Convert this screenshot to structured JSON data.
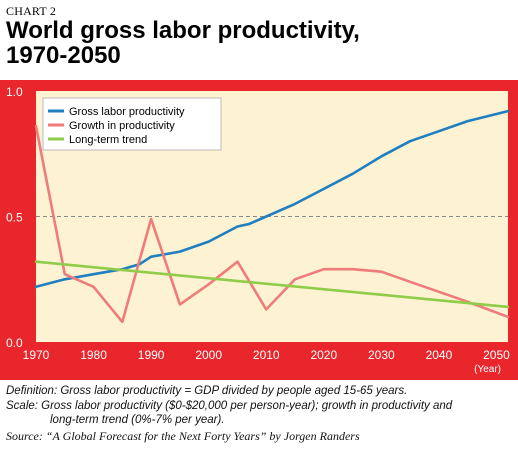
{
  "header": {
    "chart_label": "CHART 2",
    "title_line1": "World gross labor productivity,",
    "title_line2": "1970-2050"
  },
  "colors": {
    "frame": "#e8262c",
    "plot_bg": "#fdf2d2",
    "productivity": "#1f7fc0",
    "growth": "#ef7b7b",
    "trend": "#8fcc4a",
    "gridline": "#888888"
  },
  "chart_data": {
    "type": "line",
    "title": "World gross labor productivity, 1970-2050",
    "xlabel": "(Year)",
    "ylabel": "",
    "xlim": [
      1970,
      2052
    ],
    "ylim": [
      0,
      1
    ],
    "x_ticks": [
      1970,
      1980,
      1990,
      2000,
      2010,
      2020,
      2030,
      2040,
      2050
    ],
    "y_ticks": [
      {
        "value": 0,
        "label": "0.0"
      },
      {
        "value": 0.5,
        "label": "0.5"
      },
      {
        "value": 1,
        "label": "1.0"
      }
    ],
    "gridlines": [
      0.5
    ],
    "legend_position": "top-left",
    "series": [
      {
        "name": "Gross labor productivity",
        "color": "#1f7fc0",
        "points": [
          [
            1970,
            0.22
          ],
          [
            1975,
            0.25
          ],
          [
            1980,
            0.27
          ],
          [
            1985,
            0.29
          ],
          [
            1988,
            0.31
          ],
          [
            1990,
            0.34
          ],
          [
            1995,
            0.36
          ],
          [
            2000,
            0.4
          ],
          [
            2005,
            0.46
          ],
          [
            2007,
            0.47
          ],
          [
            2010,
            0.5
          ],
          [
            2015,
            0.55
          ],
          [
            2020,
            0.61
          ],
          [
            2025,
            0.67
          ],
          [
            2030,
            0.74
          ],
          [
            2035,
            0.8
          ],
          [
            2040,
            0.84
          ],
          [
            2045,
            0.88
          ],
          [
            2052,
            0.92
          ]
        ]
      },
      {
        "name": "Growth in productivity",
        "color": "#ef7b7b",
        "points": [
          [
            1970,
            0.86
          ],
          [
            1975,
            0.27
          ],
          [
            1980,
            0.22
          ],
          [
            1985,
            0.08
          ],
          [
            1990,
            0.49
          ],
          [
            1995,
            0.15
          ],
          [
            2000,
            0.23
          ],
          [
            2005,
            0.32
          ],
          [
            2010,
            0.13
          ],
          [
            2015,
            0.25
          ],
          [
            2020,
            0.29
          ],
          [
            2025,
            0.29
          ],
          [
            2030,
            0.28
          ],
          [
            2035,
            0.24
          ],
          [
            2040,
            0.2
          ],
          [
            2045,
            0.16
          ],
          [
            2052,
            0.1
          ]
        ]
      },
      {
        "name": "Long-term trend",
        "color": "#8fcc4a",
        "points": [
          [
            1970,
            0.32
          ],
          [
            2052,
            0.14
          ]
        ]
      }
    ]
  },
  "notes": {
    "definition": "Definition: Gross labor productivity = GDP divided by people aged 15-65 years.",
    "scale_line1": "Scale: Gross labor productivity ($0-$20,000 per person-year); growth in productivity and",
    "scale_line2": "long-term trend (0%-7% per year).",
    "source": "Source: “A Global Forecast for the Next Forty Years” by Jorgen Randers"
  }
}
